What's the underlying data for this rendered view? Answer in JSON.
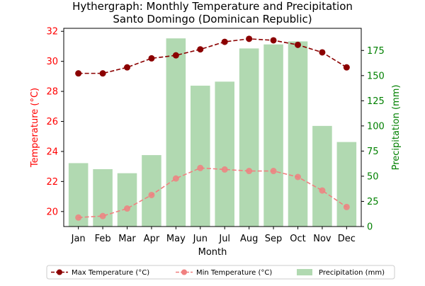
{
  "chart_data": {
    "type": "bar",
    "title": "Hythergraph: Monthly Temperature and Precipitation",
    "subtitle": "Santo Domingo (Dominican Republic)",
    "xlabel": "Month",
    "ylabel_left": "Temperature (°C)",
    "ylabel_right": "Precipitation (mm)",
    "categories": [
      "Jan",
      "Feb",
      "Mar",
      "Apr",
      "May",
      "Jun",
      "Jul",
      "Aug",
      "Sep",
      "Oct",
      "Nov",
      "Dec"
    ],
    "y_left_ticks": [
      "20",
      "22",
      "24",
      "26",
      "28",
      "30",
      "32"
    ],
    "y_right_ticks": [
      "0",
      "25",
      "50",
      "75",
      "100",
      "125",
      "150",
      "175"
    ],
    "ylim_left": [
      19.0,
      32.2
    ],
    "ylim_right": [
      0,
      197
    ],
    "series": [
      {
        "name": "Max Temperature (°C)",
        "kind": "line",
        "axis": "left",
        "color": "#8b0000",
        "values": [
          29.2,
          29.2,
          29.6,
          30.2,
          30.4,
          30.8,
          31.3,
          31.5,
          31.4,
          31.1,
          30.6,
          29.6
        ]
      },
      {
        "name": "Min Temperature (°C)",
        "kind": "line",
        "axis": "left",
        "color": "#f08080",
        "values": [
          19.6,
          19.7,
          20.2,
          21.1,
          22.2,
          22.9,
          22.8,
          22.7,
          22.7,
          22.3,
          21.4,
          20.3
        ]
      },
      {
        "name": "Precipitation (mm)",
        "kind": "bar",
        "axis": "right",
        "color": "#b1d9b1",
        "values": [
          63,
          57,
          53,
          71,
          187,
          140,
          144,
          177,
          181,
          184,
          100,
          84
        ]
      }
    ],
    "legend_position": "bottom",
    "grid": false,
    "colors": {
      "left_axis": "#ff0000",
      "right_axis": "#008000"
    }
  }
}
